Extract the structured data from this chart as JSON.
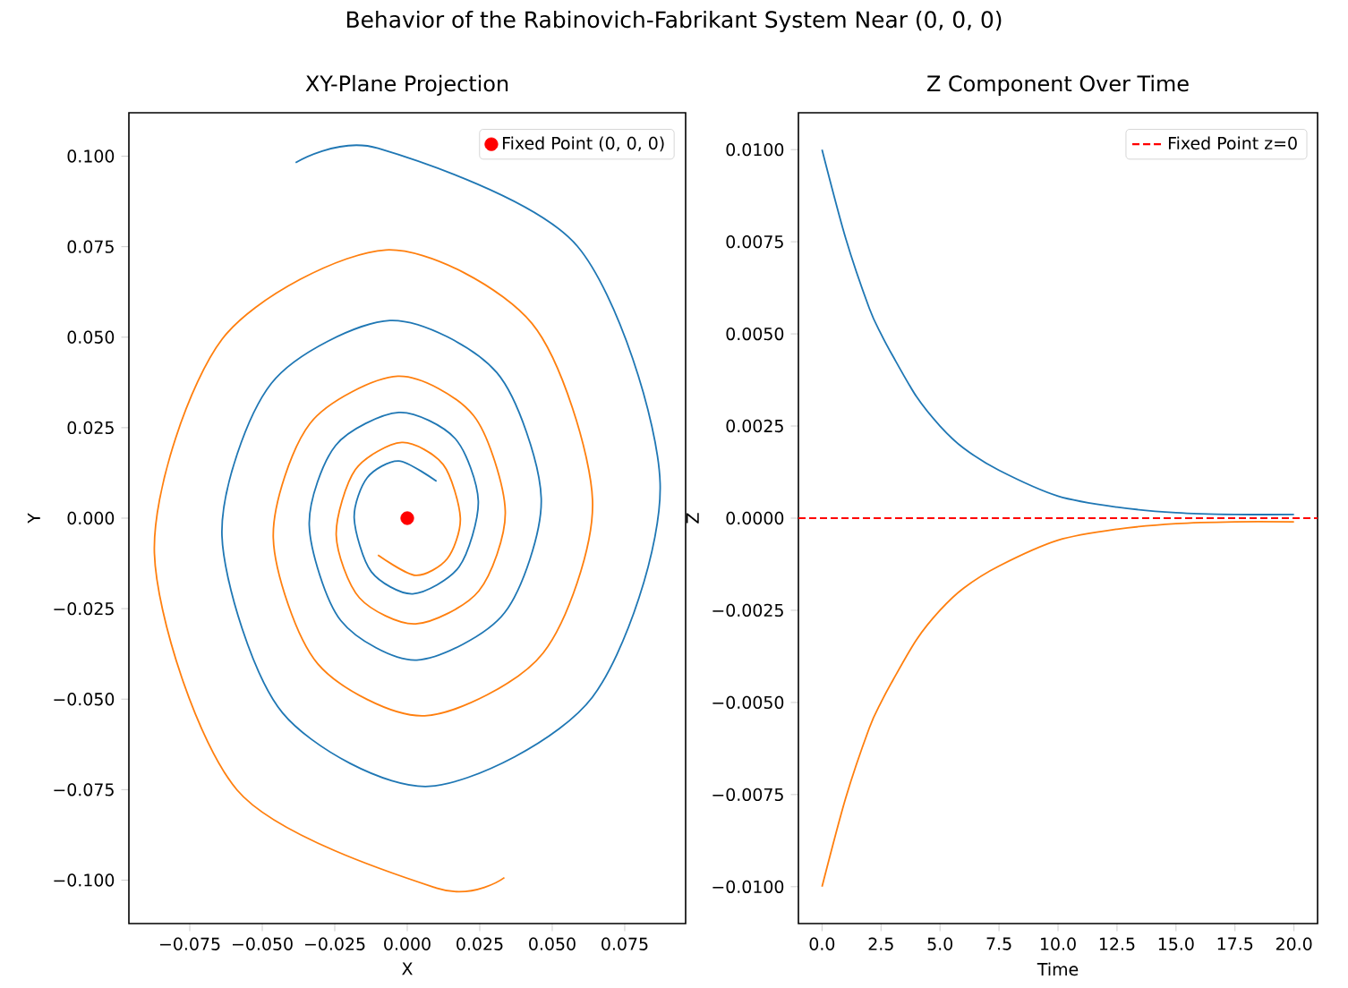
{
  "chart_data": [
    {
      "type": "line",
      "title": "XY-Plane Projection",
      "xlabel": "X",
      "ylabel": "Y",
      "annotations": [
        "Behavior of the Rabinovich-Fabrikant System Near (0, 0, 0)"
      ],
      "xlim": [
        -0.096,
        0.096
      ],
      "ylim": [
        -0.112,
        0.112
      ],
      "xticks": [
        {
          "value": -0.075,
          "label": "−0.075"
        },
        {
          "value": -0.05,
          "label": "−0.050"
        },
        {
          "value": -0.025,
          "label": "−0.025"
        },
        {
          "value": 0,
          "label": "0.000"
        },
        {
          "value": 0.025,
          "label": "0.025"
        },
        {
          "value": 0.05,
          "label": "0.050"
        },
        {
          "value": 0.075,
          "label": "0.075"
        }
      ],
      "yticks": [
        {
          "value": -0.1,
          "label": "−0.100"
        },
        {
          "value": -0.075,
          "label": "−0.075"
        },
        {
          "value": -0.05,
          "label": "−0.050"
        },
        {
          "value": -0.025,
          "label": "−0.025"
        },
        {
          "value": 0,
          "label": "0.000"
        },
        {
          "value": 0.025,
          "label": "0.025"
        },
        {
          "value": 0.05,
          "label": "0.050"
        },
        {
          "value": 0.075,
          "label": "0.075"
        },
        {
          "value": 0.1,
          "label": "0.100"
        }
      ],
      "legend": "top right",
      "series": [
        {
          "color": "#1f77b4",
          "x": [
            0.0101,
            -0.0029,
            -0.0138,
            -0.0183,
            -0.0124,
            0.0019,
            0.0179,
            0.0245,
            0.0165,
            -0.0029,
            -0.0247,
            -0.0338,
            -0.0229,
            0.0033,
            0.0336,
            0.0462,
            0.0309,
            -0.006,
            -0.0469,
            -0.0639,
            -0.043,
            0.0074,
            0.0638,
            0.0872,
            0.0587,
            -0.0101,
            -0.0385
          ],
          "values": [
            0.0102,
            0.0158,
            0.0112,
            0,
            -0.0148,
            -0.0209,
            -0.0134,
            0.0047,
            0.022,
            0.0292,
            0.0201,
            -0.0019,
            -0.0283,
            -0.0392,
            -0.0261,
            0.0055,
            0.0402,
            0.0546,
            0.0372,
            -0.0049,
            -0.0538,
            -0.0741,
            -0.0495,
            0.0097,
            0.0751,
            0.1022,
            0.0982
          ]
        },
        {
          "color": "#ff7f0e",
          "x": [
            -0.0101,
            0.0029,
            0.0138,
            0.0183,
            0.0124,
            -0.0019,
            -0.0179,
            -0.0245,
            -0.0165,
            0.0029,
            0.0247,
            0.0338,
            0.0229,
            -0.0033,
            -0.0336,
            -0.0462,
            -0.0309,
            0.006,
            0.0469,
            0.0639,
            0.043,
            -0.0074,
            -0.0638,
            -0.0872,
            -0.0587,
            0.0101,
            0.0335
          ],
          "values": [
            -0.0102,
            -0.0158,
            -0.0112,
            0,
            0.0148,
            0.0209,
            0.0134,
            -0.0047,
            -0.022,
            -0.0292,
            -0.0201,
            0.0019,
            0.0283,
            0.0392,
            0.0261,
            -0.0055,
            -0.0402,
            -0.0546,
            -0.0372,
            0.0049,
            0.0538,
            0.0741,
            0.0495,
            -0.0097,
            -0.0751,
            -0.1022,
            -0.0993
          ]
        },
        {
          "type": "scatter",
          "name": "Fixed Point (0, 0, 0)",
          "color": "#ff0000",
          "x": [
            0
          ],
          "values": [
            0
          ]
        }
      ]
    },
    {
      "type": "line",
      "title": "Z Component Over Time",
      "xlabel": "Time",
      "ylabel": "Z",
      "xlim": [
        -1,
        21
      ],
      "ylim": [
        -0.011,
        0.011
      ],
      "xticks": [
        {
          "value": 0,
          "label": "0.0"
        },
        {
          "value": 2.5,
          "label": "2.5"
        },
        {
          "value": 5,
          "label": "5.0"
        },
        {
          "value": 7.5,
          "label": "7.5"
        },
        {
          "value": 10,
          "label": "10.0"
        },
        {
          "value": 12.5,
          "label": "12.5"
        },
        {
          "value": 15,
          "label": "15.0"
        },
        {
          "value": 17.5,
          "label": "17.5"
        },
        {
          "value": 20,
          "label": "20.0"
        }
      ],
      "yticks": [
        {
          "value": -0.01,
          "label": "−0.0100"
        },
        {
          "value": -0.0075,
          "label": "−0.0075"
        },
        {
          "value": -0.005,
          "label": "−0.0050"
        },
        {
          "value": -0.0025,
          "label": "−0.0025"
        },
        {
          "value": 0,
          "label": "0.0000"
        },
        {
          "value": 0.0025,
          "label": "0.0025"
        },
        {
          "value": 0.005,
          "label": "0.0050"
        },
        {
          "value": 0.0075,
          "label": "0.0075"
        },
        {
          "value": 0.01,
          "label": "0.0100"
        }
      ],
      "legend": "top right",
      "x": [
        0,
        1,
        2,
        2.5,
        3,
        4,
        5,
        6,
        7.5,
        10,
        12.5,
        15,
        17.5,
        20
      ],
      "series": [
        {
          "color": "#1f77b4",
          "values": [
            0.01,
            0.0076,
            0.0057,
            0.005,
            0.0044,
            0.0033,
            0.0025,
            0.0019,
            0.0013,
            0.0006,
            0.0003,
            0.00015,
            0.0001,
            0.0001
          ]
        },
        {
          "color": "#ff7f0e",
          "values": [
            -0.01,
            -0.0076,
            -0.0057,
            -0.005,
            -0.0044,
            -0.0033,
            -0.0025,
            -0.0019,
            -0.0013,
            -0.0006,
            -0.0003,
            -0.00015,
            -0.0001,
            -0.0001
          ]
        }
      ],
      "ref_lines": [
        {
          "axis": "y",
          "value": 0,
          "label": "Fixed Point z=0",
          "color": "#ff0000",
          "line_style": "dashed"
        }
      ]
    }
  ]
}
